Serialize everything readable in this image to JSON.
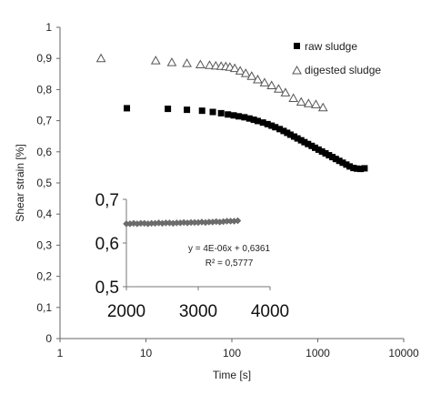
{
  "chart_data": [
    {
      "type": "scatter",
      "xscale": "log",
      "xlabel": "Time [s]",
      "ylabel": "Shear strain [%]",
      "xlim": [
        1,
        10000
      ],
      "ylim": [
        0,
        1
      ],
      "x_ticks": [
        "1",
        "10",
        "100",
        "1000",
        "10000"
      ],
      "y_ticks": [
        "0",
        "0,1",
        "0,2",
        "0,3",
        "0,4",
        "0,5",
        "0,6",
        "0,7",
        "0,8",
        "0,9",
        "1"
      ],
      "grid": false,
      "legend_position": "top-right",
      "series": [
        {
          "name": "raw sludge",
          "marker": "filled-square",
          "color": "#000000",
          "x": [
            6,
            18,
            30,
            45,
            60,
            75,
            90,
            105,
            120,
            140,
            160,
            180,
            200,
            230,
            260,
            290,
            320,
            360,
            400,
            440,
            480,
            530,
            580,
            640,
            700,
            770,
            850,
            930,
            1020,
            1120,
            1230,
            1350,
            1480,
            1620,
            1780,
            1950,
            2150,
            2350,
            2600,
            2850,
            3150,
            3500
          ],
          "y": [
            0.74,
            0.738,
            0.735,
            0.732,
            0.728,
            0.724,
            0.72,
            0.717,
            0.714,
            0.711,
            0.707,
            0.703,
            0.699,
            0.694,
            0.689,
            0.684,
            0.679,
            0.673,
            0.667,
            0.661,
            0.655,
            0.649,
            0.643,
            0.637,
            0.631,
            0.625,
            0.619,
            0.613,
            0.607,
            0.601,
            0.595,
            0.589,
            0.583,
            0.577,
            0.571,
            0.565,
            0.559,
            0.553,
            0.548,
            0.546,
            0.545,
            0.547
          ]
        },
        {
          "name": "digested sludge",
          "marker": "open-triangle",
          "color": "#555555",
          "x": [
            3,
            13,
            20,
            30,
            43,
            55,
            65,
            75,
            85,
            95,
            108,
            125,
            145,
            170,
            200,
            240,
            290,
            350,
            420,
            520,
            640,
            780,
            950,
            1150
          ],
          "y": [
            0.9,
            0.893,
            0.887,
            0.884,
            0.88,
            0.878,
            0.876,
            0.875,
            0.874,
            0.872,
            0.868,
            0.86,
            0.852,
            0.843,
            0.832,
            0.822,
            0.813,
            0.802,
            0.79,
            0.772,
            0.76,
            0.755,
            0.752,
            0.742
          ]
        }
      ]
    },
    {
      "type": "scatter",
      "title": "",
      "xlim": [
        2000,
        4000
      ],
      "ylim": [
        0.5,
        0.7
      ],
      "x_ticks": [
        "2000",
        "3000",
        "4000"
      ],
      "y_ticks": [
        "0,5",
        "0,6",
        "0,7"
      ],
      "annotations": [
        "y = 4E-06x + 0,6361",
        "R² = 0,5777"
      ],
      "series": [
        {
          "marker": "filled-diamond",
          "color": "#6e6e6e",
          "x": [
            2000,
            2050,
            2100,
            2150,
            2200,
            2250,
            2300,
            2350,
            2400,
            2450,
            2500,
            2550,
            2600,
            2650,
            2700,
            2750,
            2800,
            2850,
            2900,
            2950,
            3000,
            3050,
            3100,
            3150,
            3200,
            3250,
            3300,
            3350,
            3400,
            3450,
            3500,
            3550
          ],
          "y": [
            0.644,
            0.644,
            0.645,
            0.644,
            0.645,
            0.645,
            0.644,
            0.645,
            0.645,
            0.646,
            0.645,
            0.646,
            0.646,
            0.645,
            0.646,
            0.646,
            0.647,
            0.646,
            0.647,
            0.647,
            0.647,
            0.648,
            0.647,
            0.648,
            0.648,
            0.649,
            0.648,
            0.649,
            0.65,
            0.65,
            0.65,
            0.651
          ]
        }
      ]
    }
  ]
}
